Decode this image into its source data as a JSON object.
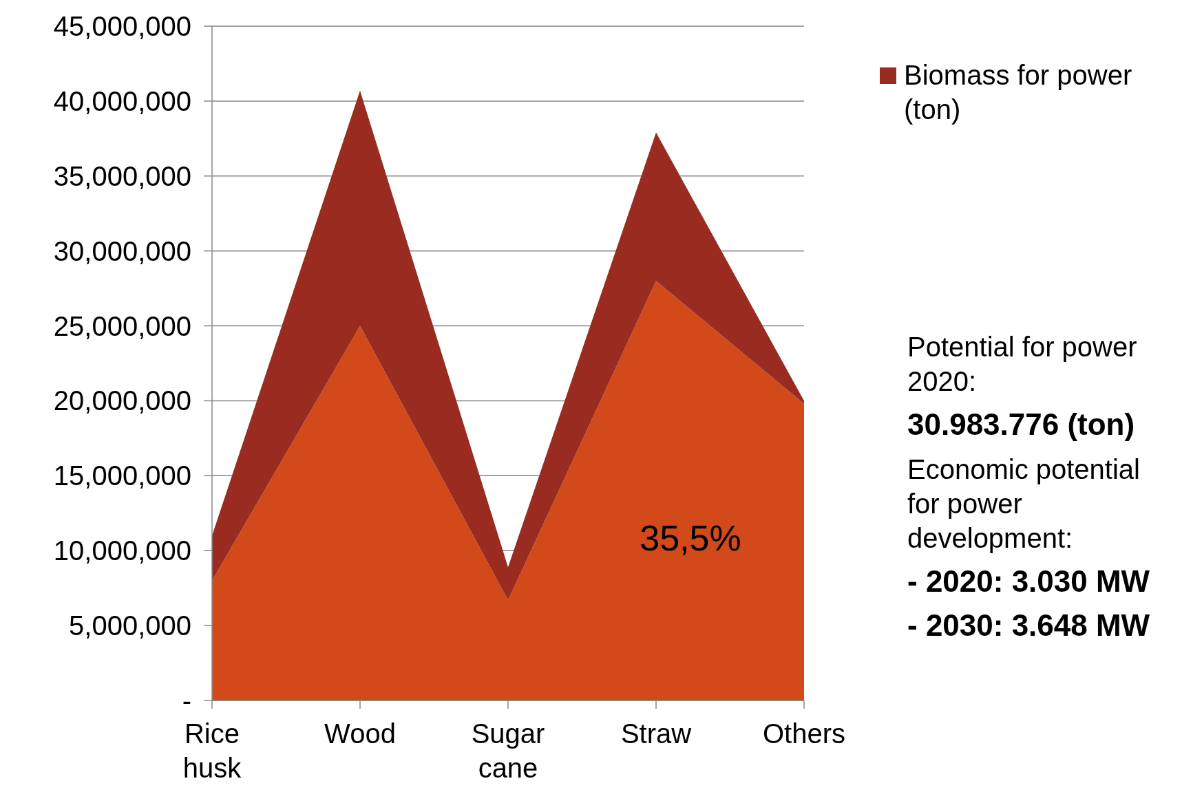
{
  "chart_data": {
    "type": "area",
    "stacked": true,
    "categories": [
      "Rice husk",
      "Wood",
      "Sugar cane",
      "Straw",
      "Others"
    ],
    "series": [
      {
        "color": "#d24a1a",
        "values": [
          8000000,
          25000000,
          6700000,
          28000000,
          19800000
        ]
      },
      {
        "name": "Biomass for power (ton)",
        "color": "#9a2b20",
        "values": [
          3000000,
          15700000,
          2200000,
          9900000,
          200000
        ]
      }
    ],
    "ylim": [
      0,
      45000000
    ],
    "yticks": [
      {
        "value": 0,
        "label": "-"
      },
      {
        "value": 5000000,
        "label": "5,000,000"
      },
      {
        "value": 10000000,
        "label": "10,000,000"
      },
      {
        "value": 15000000,
        "label": "15,000,000"
      },
      {
        "value": 20000000,
        "label": "20,000,000"
      },
      {
        "value": 25000000,
        "label": "25,000,000"
      },
      {
        "value": 30000000,
        "label": "30,000,000"
      },
      {
        "value": 35000000,
        "label": "35,000,000"
      },
      {
        "value": 40000000,
        "label": "40,000,000"
      },
      {
        "value": 45000000,
        "label": "45,000,000"
      }
    ],
    "grid": "y",
    "legend": "top right",
    "annotations": [
      "35,5%",
      "Potential for power 2020:",
      "30.983.776 (ton)",
      "Economic potential for power development:",
      "- 2020: 3.030 MW",
      "- 2030: 3.648 MW"
    ]
  }
}
